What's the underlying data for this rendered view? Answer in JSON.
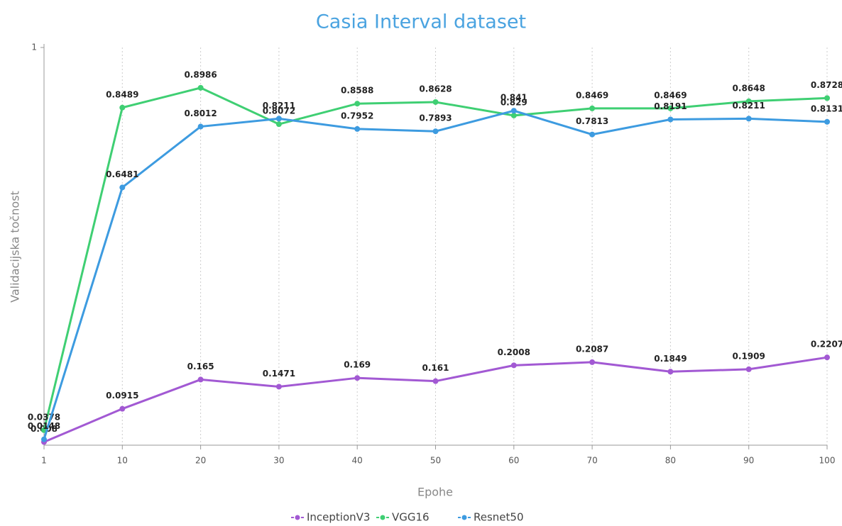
{
  "chart_data": {
    "type": "line",
    "title": "Casia Interval dataset",
    "x_label": "Epohe",
    "y_label": "Validacijska točnost",
    "categories": [
      "1",
      "10",
      "20",
      "30",
      "40",
      "50",
      "60",
      "70",
      "80",
      "90",
      "100"
    ],
    "series": [
      {
        "name": "InceptionV3",
        "color": "#a259d3",
        "values": [
          0.008,
          0.0915,
          0.165,
          0.1471,
          0.169,
          0.161,
          0.2008,
          0.2087,
          0.1849,
          0.1909,
          0.2207
        ]
      },
      {
        "name": "VGG16",
        "color": "#3fcf73",
        "values": [
          0.0378,
          0.8489,
          0.8986,
          0.8072,
          0.8588,
          0.8628,
          0.829,
          0.8469,
          0.8469,
          0.8648,
          0.8728
        ]
      },
      {
        "name": "Resnet50",
        "color": "#3d9be0",
        "values": [
          0.0148,
          0.6481,
          0.8012,
          0.8211,
          0.7952,
          0.7893,
          0.841,
          0.7813,
          0.8191,
          0.8211,
          0.8131
        ]
      }
    ],
    "ylim": [
      0,
      1
    ],
    "yticks": [
      1
    ],
    "grid": true,
    "legend": "bottom"
  }
}
